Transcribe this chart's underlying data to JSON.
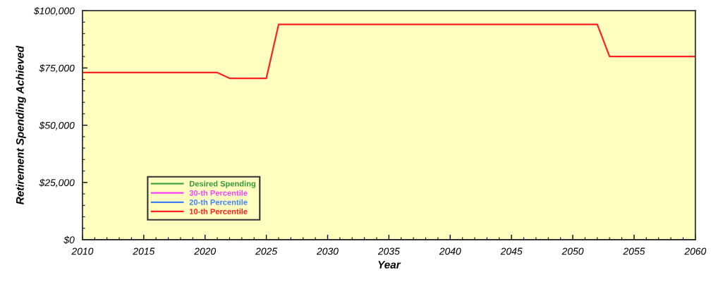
{
  "chart_data": {
    "type": "line",
    "xlabel": "Year",
    "ylabel": "Retirement Spending Achieved",
    "x": [
      2010,
      2021,
      2022,
      2025,
      2026,
      2052,
      2053,
      2060
    ],
    "series": [
      {
        "name": "Desired Spending",
        "color": "#339933",
        "values": [
          null,
          null,
          null,
          null,
          null,
          null,
          null,
          null
        ]
      },
      {
        "name": "30-th Percentile",
        "color": "#ff40ff",
        "values": [
          null,
          null,
          null,
          null,
          null,
          null,
          null,
          null
        ]
      },
      {
        "name": "20-th Percentile",
        "color": "#4080ff",
        "values": [
          null,
          null,
          null,
          null,
          null,
          null,
          null,
          null
        ]
      },
      {
        "name": "10-th Percentile",
        "color": "#ff2020",
        "values": [
          73000,
          73000,
          70500,
          70500,
          94000,
          94000,
          80000,
          80000
        ]
      }
    ],
    "xlim": [
      2010,
      2060
    ],
    "ylim": [
      0,
      100000
    ],
    "xticks": [
      2010,
      2015,
      2020,
      2025,
      2030,
      2035,
      2040,
      2045,
      2050,
      2055,
      2060
    ],
    "yticks": [
      {
        "value": 0,
        "label": "$0"
      },
      {
        "value": 25000,
        "label": "$25,000"
      },
      {
        "value": 50000,
        "label": "$50,000"
      },
      {
        "value": 75000,
        "label": "$75,000"
      },
      {
        "value": 100000,
        "label": "$100,000"
      }
    ],
    "legend": "bottom left",
    "grid": false,
    "marker": "none",
    "line_style": "solid"
  }
}
